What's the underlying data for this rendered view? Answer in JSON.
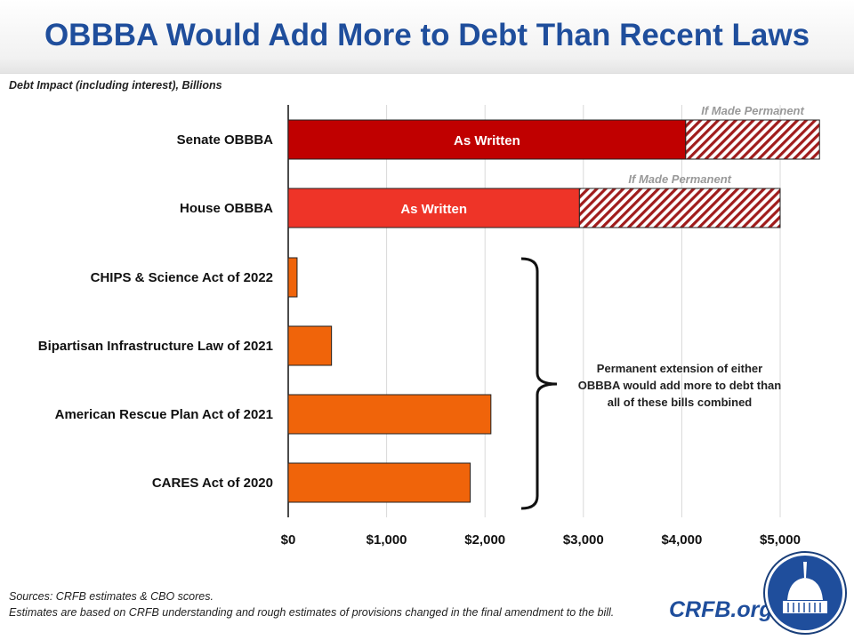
{
  "title": "OBBBA Would Add More to Debt Than Recent Laws",
  "chart_data": {
    "type": "bar",
    "orientation": "horizontal",
    "stacked": true,
    "subtitle": "Debt Impact (including interest), Billions",
    "categories": [
      "Senate OBBBA",
      "House OBBBA",
      "CHIPS & Science Act of 2022",
      "Bipartisan Infrastructure Law of 2021",
      "American Rescue Plan Act of 2021",
      "CARES Act of 2020"
    ],
    "series": [
      {
        "name": "As Written",
        "values": [
          4040,
          2960,
          90,
          440,
          2060,
          1850
        ]
      },
      {
        "name": "If Made Permanent",
        "values": [
          1360,
          2040,
          0,
          0,
          0,
          0
        ]
      }
    ],
    "bar_labels": [
      "As Written",
      "As Written"
    ],
    "permanent_labels": [
      "If Made Permanent",
      "If Made Permanent"
    ],
    "colors": [
      "#c00000",
      "#ee3428",
      "#f0640a",
      "#f0640a",
      "#f0640a",
      "#f0640a"
    ],
    "hatch_color": "#a01c1c",
    "xlim": [
      0,
      5400
    ],
    "xticks": [
      0,
      1000,
      2000,
      3000,
      4000,
      5000
    ],
    "xtick_labels": [
      "$0",
      "$1,000",
      "$2,000",
      "$3,000",
      "$4,000",
      "$5,000"
    ],
    "grid": true,
    "annotation": "Permanent extension of either OBBBA would add more to debt than all of these bills combined"
  },
  "sources": "Sources: CRFB estimates & CBO scores.",
  "footnote": "Estimates are based on CRFB understanding and rough estimates of provisions changed in the final amendment to the bill.",
  "brand": "CRFB.org",
  "logo_icon": "capitol-dome-icon"
}
